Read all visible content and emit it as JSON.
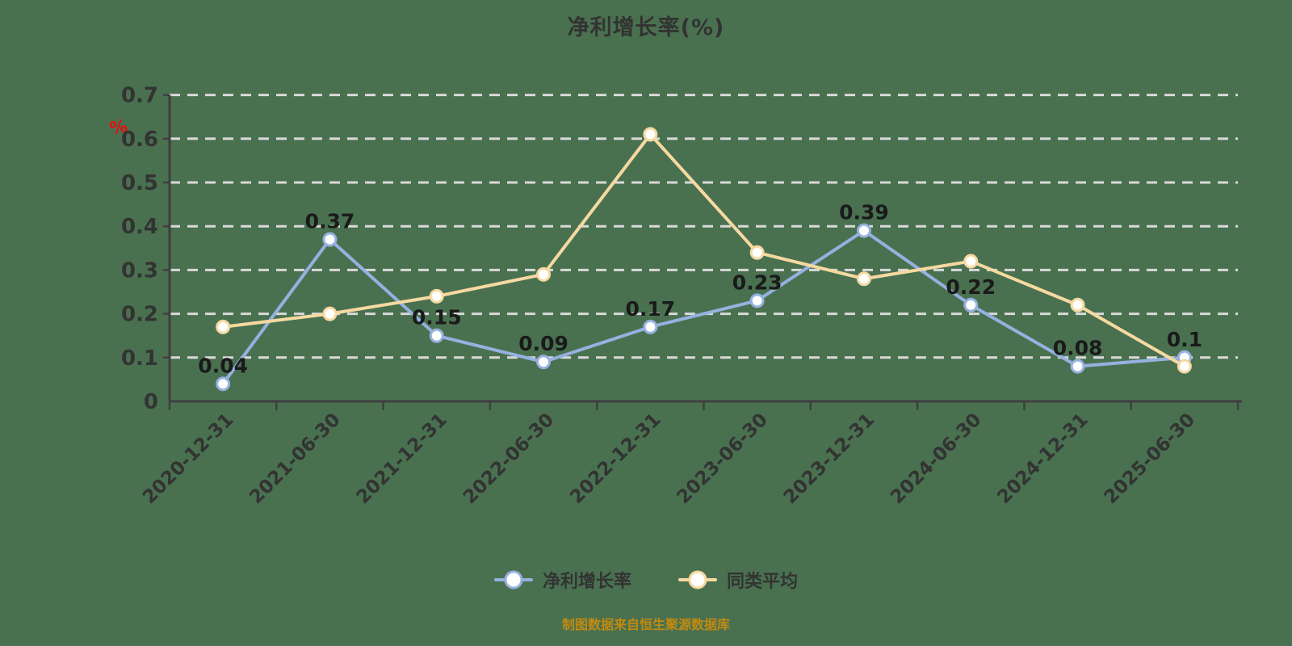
{
  "title": {
    "text": "净利增长率(%)"
  },
  "caption": {
    "text": "制图数据来自恒生聚源数据库",
    "color": "#C28A10"
  },
  "colors": {
    "background": "#497150",
    "grid": "#D9D9D9",
    "axis": "#3F3F3F",
    "tick_label": "#333333",
    "data_label": "#1A1A1A"
  },
  "y_axis": {
    "unit_label": "%",
    "unit_color": "#E60F0F",
    "tick_labels": [
      "0",
      "0.1",
      "0.2",
      "0.3",
      "0.4",
      "0.5",
      "0.6",
      "0.7"
    ]
  },
  "chart_data": {
    "type": "line",
    "title": "净利增长率(%)",
    "categories": [
      "2020-12-31",
      "2021-06-30",
      "2021-12-31",
      "2022-06-30",
      "2022-12-31",
      "2023-06-30",
      "2023-12-31",
      "2024-06-30",
      "2024-12-31",
      "2025-06-30"
    ],
    "series": [
      {
        "name": "净利增长率",
        "color": "#96B1DF",
        "values": [
          0.04,
          0.37,
          0.15,
          0.09,
          0.17,
          0.23,
          0.39,
          0.22,
          0.08,
          0.1
        ],
        "labels": [
          "0.04",
          "0.37",
          "0.15",
          "0.09",
          "0.17",
          "0.23",
          "0.39",
          "0.22",
          "0.08",
          "0.1"
        ],
        "show_labels": true
      },
      {
        "name": "同类平均",
        "color": "#F6D9A1",
        "values": [
          0.17,
          0.2,
          0.24,
          0.29,
          0.61,
          0.34,
          0.28,
          0.32,
          0.22,
          0.08
        ],
        "labels": [],
        "show_labels": false
      }
    ],
    "ylim": [
      0,
      0.7
    ],
    "y_tick_step": 0.1,
    "grid": "dashed",
    "x_label_rotation": -45,
    "legend_position": "bottom"
  }
}
